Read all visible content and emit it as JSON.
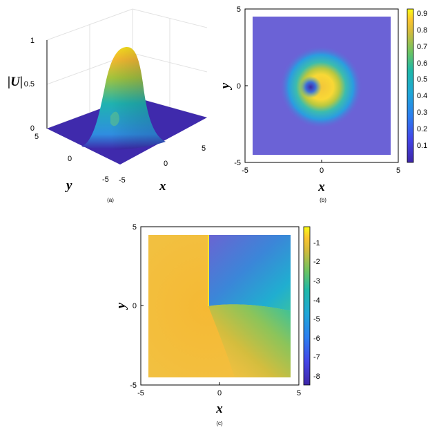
{
  "chart_data": [
    {
      "panel": "(a)",
      "type": "surface",
      "zlabel": "|U|",
      "xlabel": "x",
      "ylabel": "y",
      "x_ticks": [
        "-5",
        "0",
        "5"
      ],
      "y_ticks": [
        "5",
        "0",
        "-5"
      ],
      "z_ticks": [
        "0",
        "0.5",
        "1"
      ],
      "xlim": [
        -5,
        5
      ],
      "ylim": [
        -5,
        5
      ],
      "zlim": [
        0,
        1
      ],
      "peak": {
        "x": 0.3,
        "y": 0,
        "value": 0.93
      },
      "grid": true
    },
    {
      "panel": "(b)",
      "type": "heatmap",
      "xlabel": "x",
      "ylabel": "y",
      "x_ticks": [
        "-5",
        "0",
        "5"
      ],
      "y_ticks": [
        "5",
        "0",
        "-5"
      ],
      "xlim": [
        -5,
        5
      ],
      "ylim": [
        -5,
        5
      ],
      "data_extent": [
        -4.5,
        4.5
      ],
      "colorbar_ticks": [
        "0.9",
        "0.8",
        "0.7",
        "0.6",
        "0.5",
        "0.4",
        "0.3",
        "0.2",
        "0.1"
      ],
      "colorbar_range": [
        0,
        0.95
      ],
      "vortex_core": {
        "x": -0.8,
        "y": 0
      },
      "max": {
        "x": 0.4,
        "y": 0,
        "value": 0.93
      }
    },
    {
      "panel": "(c)",
      "type": "heatmap",
      "xlabel": "x",
      "ylabel": "y",
      "x_ticks": [
        "-5",
        "0",
        "5"
      ],
      "y_ticks": [
        "5",
        "0",
        "-5"
      ],
      "xlim": [
        -5,
        5
      ],
      "ylim": [
        -5,
        5
      ],
      "data_extent": [
        -4.5,
        4.5
      ],
      "colorbar_ticks": [
        "-1",
        "-2",
        "-3",
        "-4",
        "-5",
        "-6",
        "-7",
        "-8"
      ],
      "colorbar_range": [
        -8.6,
        -0.3
      ],
      "phase_singularity": {
        "x": -0.8,
        "y": 0
      }
    }
  ],
  "captions": {
    "a": "(a)",
    "b": "(b)",
    "c": "(c)"
  },
  "colors": {
    "low": "#3e26a8",
    "mid": "#1fb3b0",
    "high": "#f9fb15"
  }
}
